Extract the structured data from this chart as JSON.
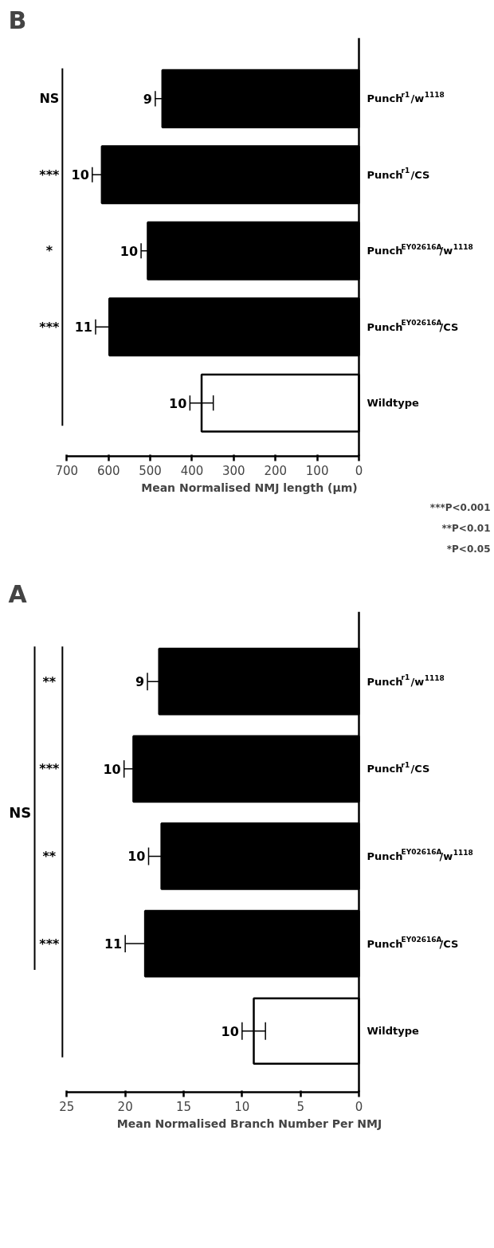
{
  "chart_data": [
    {
      "type": "bar",
      "orientation": "horizontal",
      "title": "B",
      "xlabel": "Mean Normalised NMJ length (µm)",
      "categories": [
        "Punch$^{r1}$/w$^{1118}$",
        "Punch$^{r1}$/CS",
        "Punch$^{EY02616A}$/w$^{1118}$",
        "Punch$^{EY02616A}$/CS",
        "Wildtype"
      ],
      "values": [
        471,
        616,
        506,
        598,
        377
      ],
      "errors": [
        17,
        23,
        16,
        33,
        28
      ],
      "colors": [
        "#000000",
        "#000000",
        "#000000",
        "#000000",
        "#ffffff"
      ],
      "xlim": [
        700,
        0
      ],
      "xticks": [
        0,
        100,
        200,
        300,
        400,
        500,
        600,
        700
      ],
      "grid": false,
      "annotations": [
        "9",
        "10",
        "10",
        "11",
        "10",
        "NS",
        "***",
        "*",
        "***",
        "***P<0.001",
        "**P<0.01",
        "*P<0.05"
      ]
    },
    {
      "type": "bar",
      "orientation": "horizontal",
      "title": "A",
      "xlabel": "Mean Normalised Branch Number Per NMJ",
      "categories": [
        "Punch$^{r1}$/w$^{1118}$",
        "Punch$^{r1}$/CS",
        "Punch$^{EY02616A}$/w$^{1118}$",
        "Punch$^{EY02616A}$/CS",
        "Wildtype"
      ],
      "values": [
        17.1,
        19.3,
        16.9,
        18.3,
        9.0
      ],
      "errors": [
        1.0,
        0.8,
        1.1,
        1.7,
        1.0
      ],
      "colors": [
        "#000000",
        "#000000",
        "#000000",
        "#000000",
        "#ffffff"
      ],
      "xlim": [
        25,
        0
      ],
      "xticks": [
        0,
        5,
        10,
        15,
        20,
        25
      ],
      "grid": false,
      "annotations": [
        "9",
        "10",
        "10",
        "11",
        "10",
        "**",
        "***",
        "**",
        "***",
        "NS"
      ]
    }
  ]
}
